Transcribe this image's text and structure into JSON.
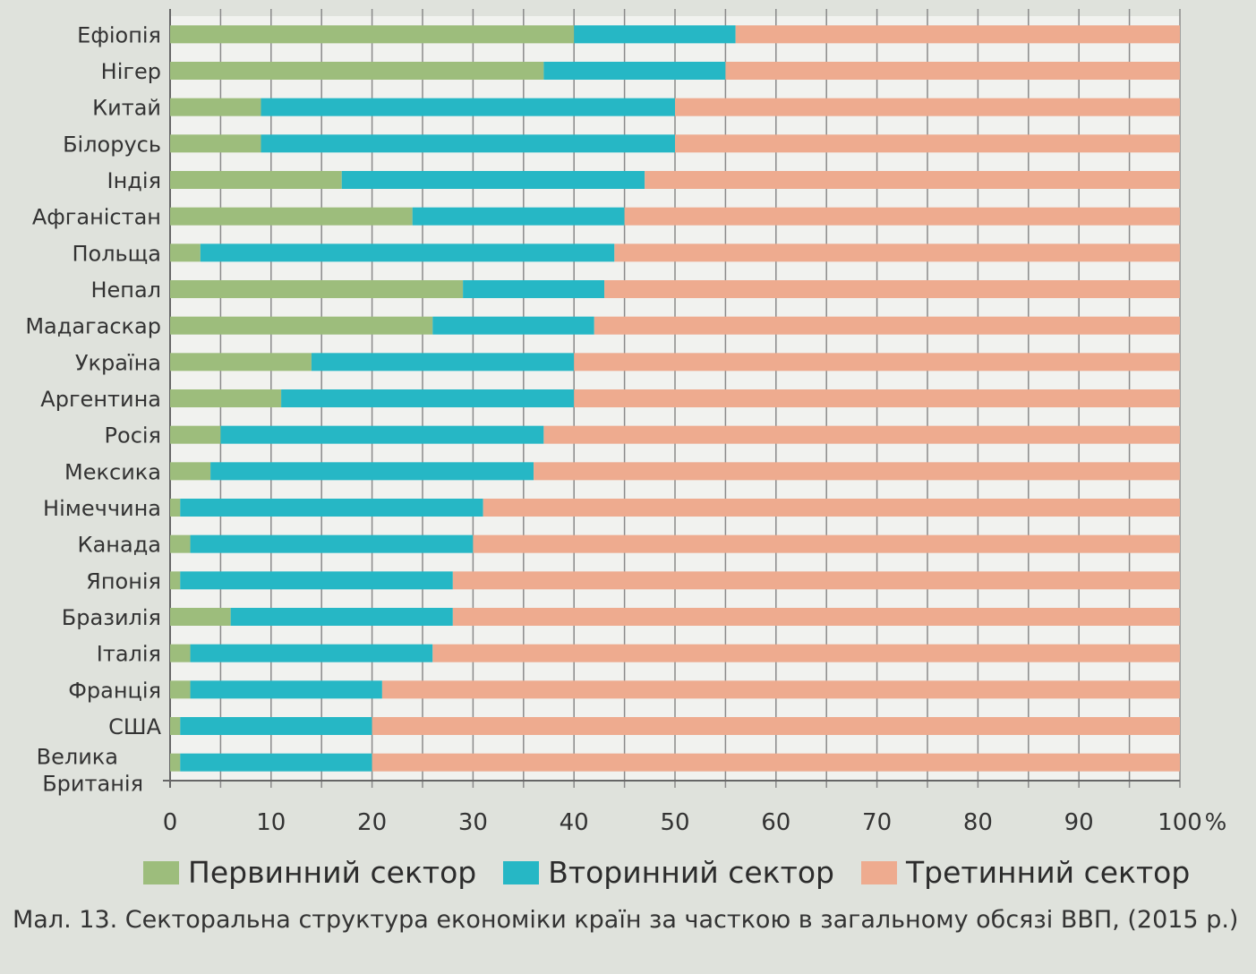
{
  "chart_data": {
    "type": "bar",
    "orientation": "horizontal",
    "stacked": true,
    "categories": [
      "Ефіопія",
      "Нігер",
      "Китай",
      "Білорусь",
      "Індія",
      "Афганістан",
      "Польща",
      "Непал",
      "Мадагаскар",
      "Україна",
      "Аргентина",
      "Росія",
      "Мексика",
      "Німеччина",
      "Канада",
      "Японія",
      "Бразилія",
      "Італія",
      "Франція",
      "США",
      "Велика Британія"
    ],
    "series": [
      {
        "name": "Первинний сектор",
        "color": "#9dbd7c",
        "values": [
          40,
          37,
          9,
          9,
          17,
          24,
          3,
          29,
          26,
          14,
          11,
          5,
          4,
          1,
          2,
          1,
          6,
          2,
          2,
          1,
          1
        ]
      },
      {
        "name": "Вторинний сектор",
        "color": "#26b7c5",
        "values": [
          16,
          18,
          41,
          41,
          30,
          21,
          41,
          14,
          16,
          26,
          29,
          32,
          32,
          30,
          28,
          27,
          22,
          24,
          19,
          19,
          19
        ]
      },
      {
        "name": "Третинний сектор",
        "color": "#eeab8f",
        "values": [
          44,
          45,
          50,
          50,
          53,
          55,
          56,
          57,
          58,
          60,
          60,
          63,
          64,
          69,
          70,
          72,
          72,
          74,
          79,
          80,
          80
        ]
      }
    ],
    "xticks": [
      "0",
      "10",
      "20",
      "30",
      "40",
      "50",
      "60",
      "70",
      "80",
      "90",
      "100"
    ],
    "xunit": "%",
    "xlim": [
      0,
      100
    ],
    "grid": "vertical every 5",
    "legend_position": "bottom"
  },
  "caption": "Мал. 13. Секторальна структура економіки країн за часткою в загальному обсязі ВВП, (2015 р.)"
}
